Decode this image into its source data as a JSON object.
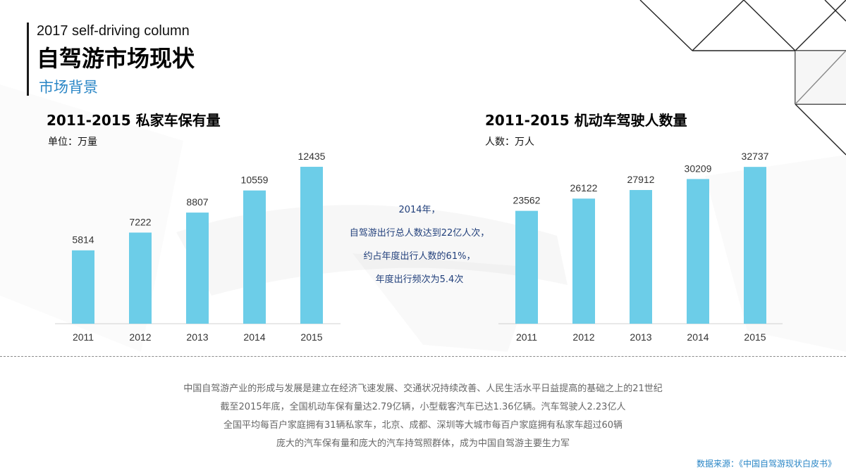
{
  "header": {
    "subtitle": "2017 self-driving column",
    "title": "自驾游市场现状",
    "section": "市场背景"
  },
  "colors": {
    "bar": "#6ccde8",
    "accent": "#2a86c6",
    "callout": "#23417c"
  },
  "chart_data": [
    {
      "type": "bar",
      "title": "2011-2015 私家车保有量",
      "unit_label": "单位：万量",
      "categories": [
        "2011",
        "2012",
        "2013",
        "2014",
        "2015"
      ],
      "values": [
        5814,
        7222,
        8807,
        10559,
        12435
      ],
      "ylim": [
        0,
        14500
      ],
      "grid": false,
      "legend": "none"
    },
    {
      "type": "bar",
      "title": "2011-2015 机动车驾驶人数量",
      "unit_label": "人数：万人",
      "categories": [
        "2011",
        "2012",
        "2013",
        "2014",
        "2015"
      ],
      "values": [
        23562,
        26122,
        27912,
        30209,
        32737
      ],
      "ylim": [
        0,
        38200
      ],
      "grid": false,
      "legend": "none"
    }
  ],
  "callout": {
    "lines": [
      "2014年，",
      "自驾游出行总人数达到22亿人次，",
      "约占年度出行人数的61%，",
      "年度出行频次为5.4次"
    ]
  },
  "summary": {
    "lines": [
      "中国自驾游产业的形成与发展是建立在经济飞速发展、交通状况持续改善、人民生活水平日益提高的基础之上的21世纪",
      "截至2015年底，全国机动车保有量达2.79亿辆，小型载客汽车已达1.36亿辆。汽车驾驶人2.23亿人",
      "全国平均每百户家庭拥有31辆私家车，北京、成都、深圳等大城市每百户家庭拥有私家车超过60辆",
      "庞大的汽车保有量和庞大的汽车持驾照群体，成为中国自驾游主要生力军"
    ]
  },
  "source": "数据来源：《中国自驾游现状白皮书》"
}
